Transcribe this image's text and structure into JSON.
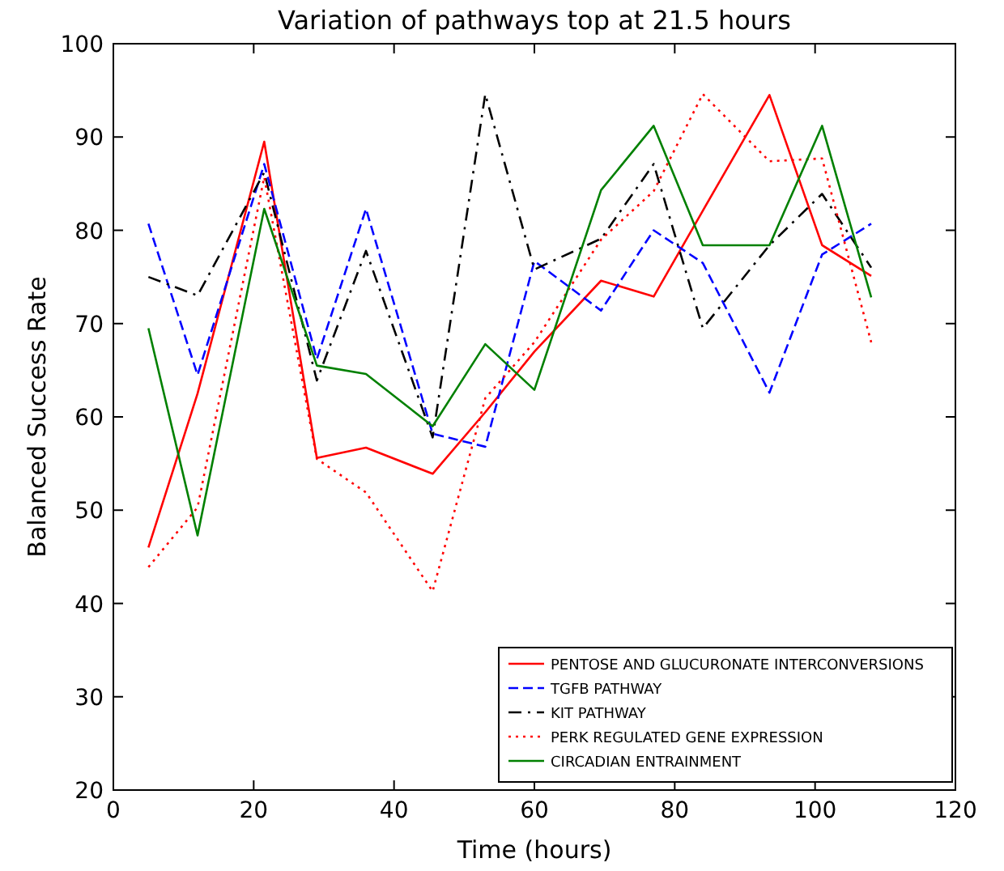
{
  "chart_data": {
    "type": "line",
    "title": "Variation of pathways top at 21.5 hours",
    "xlabel": "Time (hours)",
    "ylabel": "Balanced Success Rate",
    "x": [
      5,
      12,
      21.5,
      29,
      36,
      45.5,
      53,
      60,
      69.5,
      77,
      84,
      93.5,
      101,
      108
    ],
    "xlim": [
      0,
      120
    ],
    "xticks": [
      0,
      20,
      40,
      60,
      80,
      100,
      120
    ],
    "ylim": [
      20,
      100
    ],
    "yticks": [
      20,
      30,
      40,
      50,
      60,
      70,
      80,
      90,
      100
    ],
    "grid": false,
    "legend": "bottom right",
    "marker": "none",
    "series": [
      {
        "name": "PENTOSE AND GLUCURONATE INTERCONVERSIONS",
        "color": "#ff0000",
        "line_style": "solid",
        "values": [
          46,
          62.5,
          89.5,
          55.6,
          56.7,
          53.9,
          60.5,
          67,
          74.6,
          72.9,
          82.1,
          94.5,
          78.4,
          75.1
        ]
      },
      {
        "name": "TGFB PATHWAY",
        "color": "#0000ff",
        "line_style": "dashed",
        "values": [
          80.7,
          64.5,
          87.1,
          66.2,
          82.3,
          58.2,
          56.8,
          76.7,
          71.4,
          80,
          76.5,
          62.6,
          77.4,
          80.7
        ]
      },
      {
        "name": "KIT PATHWAY",
        "color": "#000000",
        "line_style": "dashdot",
        "values": [
          75,
          73,
          86.2,
          63.9,
          77.8,
          57.8,
          94.6,
          75.8,
          79.1,
          87.1,
          69.5,
          78.4,
          83.9,
          76
        ]
      },
      {
        "name": "PERK REGULATED GENE EXPRESSION",
        "color": "#ff0000",
        "line_style": "dotted",
        "values": [
          43.9,
          50.3,
          85.7,
          55.5,
          51.9,
          41.3,
          62,
          68,
          79,
          84.2,
          94.6,
          87.4,
          87.7,
          68
        ]
      },
      {
        "name": "CIRCADIAN ENTRAINMENT",
        "color": "#008000",
        "line_style": "solid",
        "values": [
          69.5,
          47.3,
          82.3,
          65.5,
          64.6,
          59,
          67.8,
          62.9,
          84.3,
          91.2,
          78.4,
          78.4,
          91.2,
          72.8
        ]
      }
    ]
  }
}
